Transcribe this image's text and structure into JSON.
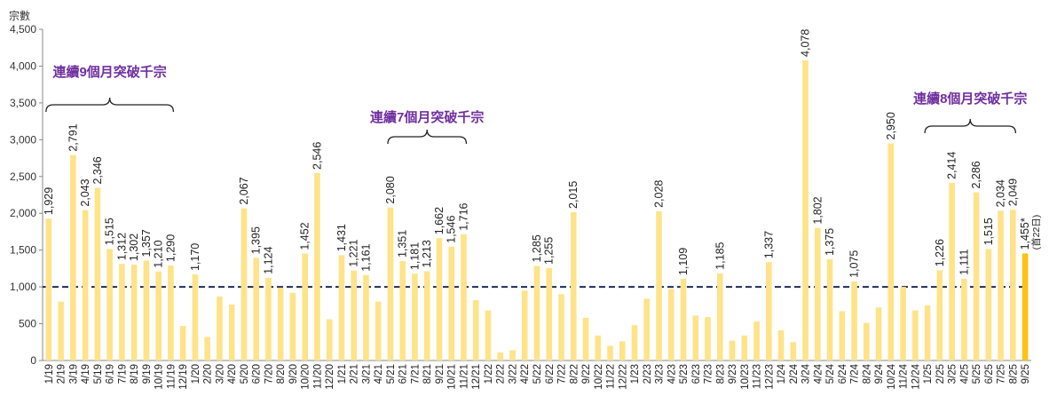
{
  "chart_data": {
    "type": "bar",
    "ylabel": "宗數",
    "ylim": [
      0,
      4500
    ],
    "yticks": [
      "0",
      "500",
      "1,000",
      "1,500",
      "2,000",
      "2,500",
      "3,000",
      "3,500",
      "4,000",
      "4,500"
    ],
    "reference_line": 1000,
    "colors": {
      "bar": "#FFE389",
      "highlight": "#F9C414",
      "line": "#1F2A5C",
      "annotation": "#7030A0"
    },
    "categories": [
      "1/19",
      "2/19",
      "3/19",
      "4/19",
      "5/19",
      "6/19",
      "7/19",
      "8/19",
      "9/19",
      "10/19",
      "11/19",
      "12/19",
      "1/20",
      "2/20",
      "3/20",
      "4/20",
      "5/20",
      "6/20",
      "7/20",
      "8/20",
      "9/20",
      "10/20",
      "11/20",
      "12/20",
      "1/21",
      "2/21",
      "3/21",
      "4/21",
      "5/21",
      "6/21",
      "7/21",
      "8/21",
      "9/21",
      "10/21",
      "11/21",
      "12/21",
      "1/22",
      "2/22",
      "3/22",
      "4/22",
      "5/22",
      "6/22",
      "7/22",
      "8/22",
      "9/22",
      "10/22",
      "11/22",
      "12/22",
      "1/23",
      "2/23",
      "3/23",
      "4/23",
      "5/23",
      "6/23",
      "7/23",
      "8/23",
      "9/23",
      "10/23",
      "11/23",
      "12/23",
      "1/24",
      "2/24",
      "3/24",
      "4/24",
      "5/24",
      "6/24",
      "7/24",
      "8/24",
      "9/24",
      "10/24",
      "11/24",
      "12/24",
      "1/25",
      "2/25",
      "3/25",
      "4/25",
      "5/25",
      "6/25",
      "7/25",
      "8/25",
      "9/25"
    ],
    "values": [
      1929,
      800,
      2791,
      2043,
      2346,
      1515,
      1312,
      1302,
      1357,
      1210,
      1290,
      470,
      1170,
      320,
      870,
      760,
      2067,
      1395,
      1124,
      990,
      920,
      1452,
      2546,
      560,
      1431,
      1221,
      1161,
      800,
      2080,
      1351,
      1181,
      1213,
      1662,
      1546,
      1716,
      820,
      680,
      110,
      140,
      950,
      1285,
      1255,
      900,
      2015,
      580,
      340,
      200,
      260,
      480,
      840,
      2028,
      970,
      1109,
      610,
      590,
      1185,
      270,
      340,
      530,
      1337,
      410,
      250,
      4078,
      1802,
      1375,
      670,
      1075,
      510,
      720,
      2950,
      1000,
      680,
      750,
      1226,
      2414,
      1111,
      2286,
      1515,
      2034,
      2049,
      1455
    ],
    "labels": [
      "1,929",
      "",
      "2,791",
      "2,043",
      "2,346",
      "1,515",
      "1,312",
      "1,302",
      "1,357",
      "1,210",
      "1,290",
      "",
      "1,170",
      "",
      "",
      "",
      "2,067",
      "1,395",
      "1,124",
      "",
      "",
      "1,452",
      "2,546",
      "",
      "1,431",
      "1,221",
      "1,161",
      "",
      "2,080",
      "1,351",
      "1,181",
      "1,213",
      "1,662",
      "1,546",
      "1,716",
      "",
      "",
      "",
      "",
      "",
      "1,285",
      "1,255",
      "",
      "2,015",
      "",
      "",
      "",
      "",
      "",
      "",
      "2,028",
      "",
      "1,109",
      "",
      "",
      "1,185",
      "",
      "",
      "",
      "1,337",
      "",
      "",
      "4,078",
      "1,802",
      "1,375",
      "",
      "1,075",
      "",
      "",
      "2,950",
      "",
      "",
      "",
      "1,226",
      "2,414",
      "1,111",
      "2,286",
      "1,515",
      "2,034",
      "2,049",
      "1,455*"
    ],
    "last_bar_note": "(首22日)",
    "annotations": [
      {
        "text": "連續9個月突破千宗",
        "from": 0,
        "to": 10
      },
      {
        "text": "連續7個月突破千宗",
        "from": 28,
        "to": 34
      },
      {
        "text": "連續8個月突破千宗",
        "from": 72,
        "to": 79
      }
    ]
  }
}
